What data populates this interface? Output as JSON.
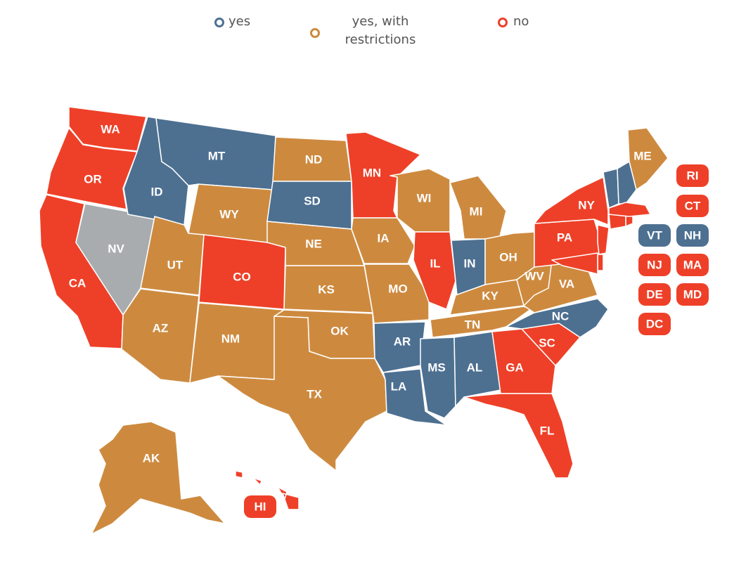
{
  "legend": {
    "yes": "yes",
    "restrictions": "yes, with restrictions",
    "no": "no"
  },
  "colors": {
    "yes": "#4d7091",
    "restrictions": "#cd8a3f",
    "no": "#ee4028",
    "none": "#a9acaf"
  },
  "states": [
    {
      "abbr": "WA",
      "status": "no"
    },
    {
      "abbr": "OR",
      "status": "no"
    },
    {
      "abbr": "CA",
      "status": "no"
    },
    {
      "abbr": "NV",
      "status": "none"
    },
    {
      "abbr": "ID",
      "status": "yes"
    },
    {
      "abbr": "MT",
      "status": "yes"
    },
    {
      "abbr": "WY",
      "status": "restrictions"
    },
    {
      "abbr": "UT",
      "status": "restrictions"
    },
    {
      "abbr": "AZ",
      "status": "restrictions"
    },
    {
      "abbr": "CO",
      "status": "no"
    },
    {
      "abbr": "NM",
      "status": "restrictions"
    },
    {
      "abbr": "ND",
      "status": "restrictions"
    },
    {
      "abbr": "SD",
      "status": "yes"
    },
    {
      "abbr": "NE",
      "status": "restrictions"
    },
    {
      "abbr": "KS",
      "status": "restrictions"
    },
    {
      "abbr": "OK",
      "status": "restrictions"
    },
    {
      "abbr": "TX",
      "status": "restrictions"
    },
    {
      "abbr": "MN",
      "status": "no"
    },
    {
      "abbr": "IA",
      "status": "restrictions"
    },
    {
      "abbr": "MO",
      "status": "restrictions"
    },
    {
      "abbr": "AR",
      "status": "yes"
    },
    {
      "abbr": "LA",
      "status": "yes"
    },
    {
      "abbr": "WI",
      "status": "restrictions"
    },
    {
      "abbr": "IL",
      "status": "no"
    },
    {
      "abbr": "MI",
      "status": "restrictions"
    },
    {
      "abbr": "IN",
      "status": "yes"
    },
    {
      "abbr": "OH",
      "status": "restrictions"
    },
    {
      "abbr": "KY",
      "status": "restrictions"
    },
    {
      "abbr": "TN",
      "status": "restrictions"
    },
    {
      "abbr": "MS",
      "status": "yes"
    },
    {
      "abbr": "AL",
      "status": "yes"
    },
    {
      "abbr": "GA",
      "status": "no"
    },
    {
      "abbr": "FL",
      "status": "no"
    },
    {
      "abbr": "SC",
      "status": "no"
    },
    {
      "abbr": "NC",
      "status": "yes"
    },
    {
      "abbr": "VA",
      "status": "restrictions"
    },
    {
      "abbr": "WV",
      "status": "restrictions"
    },
    {
      "abbr": "PA",
      "status": "no"
    },
    {
      "abbr": "NY",
      "status": "no"
    },
    {
      "abbr": "ME",
      "status": "restrictions"
    },
    {
      "abbr": "AK",
      "status": "restrictions"
    },
    {
      "abbr": "HI",
      "status": "no"
    },
    {
      "abbr": "VT",
      "status": "yes"
    },
    {
      "abbr": "NH",
      "status": "yes"
    },
    {
      "abbr": "RI",
      "status": "no"
    },
    {
      "abbr": "CT",
      "status": "no"
    },
    {
      "abbr": "NJ",
      "status": "no"
    },
    {
      "abbr": "MA",
      "status": "no"
    },
    {
      "abbr": "DE",
      "status": "no"
    },
    {
      "abbr": "MD",
      "status": "no"
    },
    {
      "abbr": "DC",
      "status": "no"
    }
  ]
}
